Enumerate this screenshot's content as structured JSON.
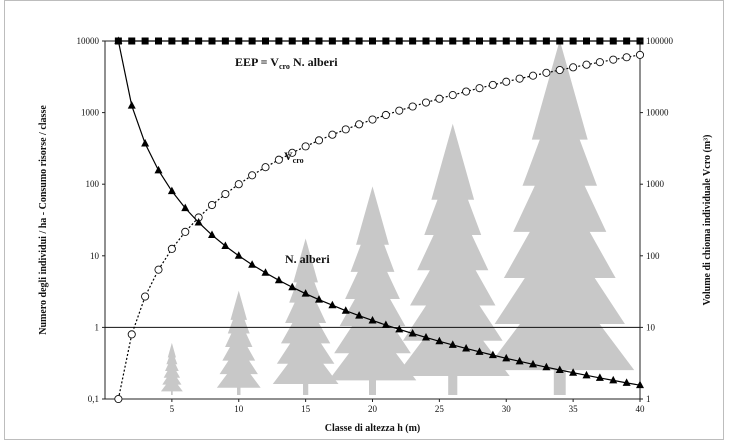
{
  "chart_data": {
    "type": "line",
    "xlabel": "Classe di altezza h (m)",
    "ylabel_left": "Numero degli individui / ha  -  Consumo risorse / classe",
    "ylabel_right": "Volume di chioma individuale Vcro (m³)",
    "x_ticks": [
      "5",
      "10",
      "15",
      "20",
      "25",
      "30",
      "35",
      "40"
    ],
    "y_left_ticks": [
      "0,1",
      "1",
      "10",
      "100",
      "1000",
      "10000"
    ],
    "y_right_ticks": [
      "1",
      "10",
      "100",
      "1000",
      "10000",
      "100000"
    ],
    "xlim": [
      0,
      40
    ],
    "ylim_left": [
      0.1,
      10000
    ],
    "ylim_right": [
      1,
      100000
    ],
    "scale_y": "log",
    "reference_line_y": 1,
    "annotations": {
      "eep_main": "EEP = V",
      "eep_sub": "cro",
      "eep_tail": " N. alberi",
      "vcro_main": "V",
      "vcro_sub": "cro",
      "nalberi": "N. alberi"
    },
    "series": [
      {
        "name": "EEP",
        "axis": "left",
        "marker": "square",
        "x": [
          1,
          2,
          3,
          4,
          5,
          6,
          7,
          8,
          9,
          10,
          11,
          12,
          13,
          14,
          15,
          16,
          17,
          18,
          19,
          20,
          21,
          22,
          23,
          24,
          25,
          26,
          27,
          28,
          29,
          30,
          31,
          32,
          33,
          34,
          35,
          36,
          37,
          38,
          39,
          40
        ],
        "values": [
          10000,
          10000,
          10000,
          10000,
          10000,
          10000,
          10000,
          10000,
          10000,
          10000,
          10000,
          10000,
          10000,
          10000,
          10000,
          10000,
          10000,
          10000,
          10000,
          10000,
          10000,
          10000,
          10000,
          10000,
          10000,
          10000,
          10000,
          10000,
          10000,
          10000,
          10000,
          10000,
          10000,
          10000,
          10000,
          10000,
          10000,
          10000,
          10000,
          10000
        ]
      },
      {
        "name": "Vcro",
        "axis": "right",
        "marker": "circle",
        "x": [
          1,
          2,
          3,
          4,
          5,
          6,
          7,
          8,
          9,
          10,
          11,
          12,
          13,
          14,
          15,
          16,
          17,
          18,
          19,
          20,
          21,
          22,
          23,
          24,
          25,
          26,
          27,
          28,
          29,
          30,
          31,
          32,
          33,
          34,
          35,
          36,
          37,
          38,
          39,
          40
        ],
        "values": [
          1,
          8,
          27,
          64,
          125,
          216,
          343,
          512,
          729,
          1000,
          1331,
          1728,
          2197,
          2744,
          3375,
          4096,
          4913,
          5832,
          6859,
          8000,
          9261,
          10648,
          12167,
          13824,
          15625,
          17576,
          19683,
          21952,
          24389,
          27000,
          29791,
          32768,
          35937,
          39304,
          42875,
          46656,
          50653,
          54872,
          59319,
          64000
        ]
      },
      {
        "name": "N. alberi",
        "axis": "left",
        "marker": "triangle",
        "x": [
          1,
          2,
          3,
          4,
          5,
          6,
          7,
          8,
          9,
          10,
          11,
          12,
          13,
          14,
          15,
          16,
          17,
          18,
          19,
          20,
          21,
          22,
          23,
          24,
          25,
          26,
          27,
          28,
          29,
          30,
          31,
          32,
          33,
          34,
          35,
          36,
          37,
          38,
          39,
          40
        ],
        "values": [
          10000,
          1250,
          370,
          156,
          80,
          46.3,
          29.2,
          19.5,
          13.7,
          10,
          7.51,
          5.79,
          4.55,
          3.64,
          2.96,
          2.44,
          2.04,
          1.71,
          1.46,
          1.25,
          1.08,
          0.939,
          0.822,
          0.723,
          0.64,
          0.569,
          0.508,
          0.456,
          0.41,
          0.37,
          0.336,
          0.305,
          0.278,
          0.254,
          0.233,
          0.214,
          0.197,
          0.182,
          0.168,
          0.156
        ]
      }
    ],
    "background_trees": [
      {
        "x": 5,
        "height": 5
      },
      {
        "x": 10,
        "height": 10
      },
      {
        "x": 15,
        "height": 15
      },
      {
        "x": 20,
        "height": 20
      },
      {
        "x": 26,
        "height": 26
      },
      {
        "x": 34,
        "height": 34
      }
    ],
    "colors": {
      "line": "#000000",
      "tree": "#c8c8c8",
      "marker_fill_square": "#000000",
      "marker_fill_triangle": "#000000",
      "marker_fill_circle": "#ffffff"
    }
  }
}
